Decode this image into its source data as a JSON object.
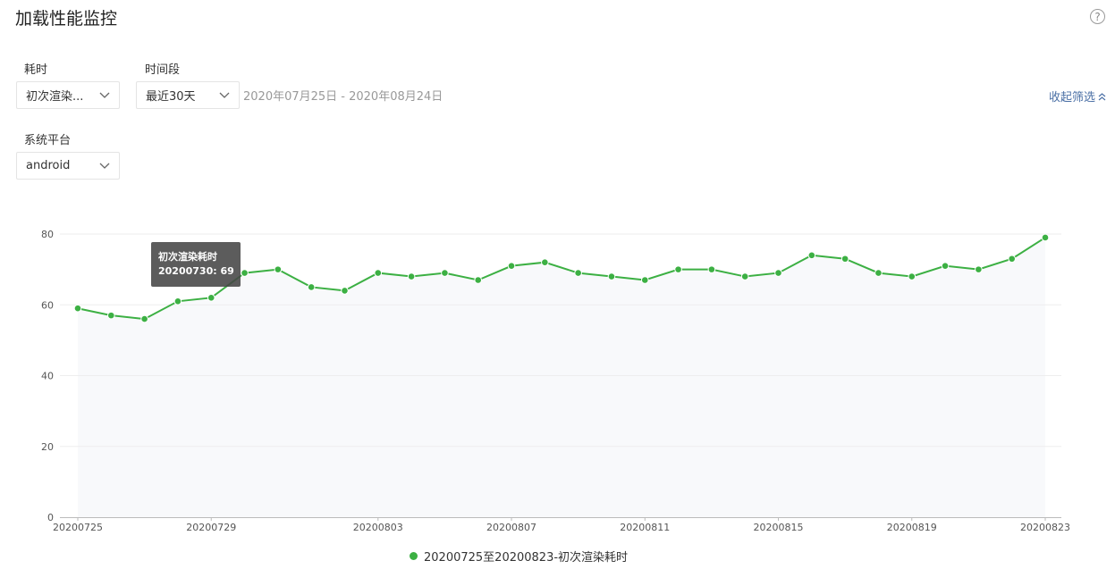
{
  "header": {
    "title": "加载性能监控",
    "help_icon": "question-circle-icon",
    "help_glyph": "?"
  },
  "filters": {
    "metric": {
      "label": "耗时",
      "value": "初次渲染..."
    },
    "period": {
      "label": "时间段",
      "value": "最近30天",
      "range_text": "2020年07月25日 - 2020年08月24日"
    },
    "platform": {
      "label": "系统平台",
      "value": "android"
    },
    "collapse_label": "收起筛选"
  },
  "colors": {
    "line": "#3cb043",
    "area": "#f8f9fb",
    "grid": "#eeeeee",
    "axis": "#bbbbbb",
    "accent_link": "#4a6fa5"
  },
  "tooltip": {
    "title": "初次渲染耗时",
    "value_text": "20200730: 69"
  },
  "chart_data": {
    "type": "line",
    "x": [
      "20200725",
      "20200726",
      "20200727",
      "20200728",
      "20200729",
      "20200730",
      "20200731",
      "20200801",
      "20200802",
      "20200803",
      "20200804",
      "20200805",
      "20200806",
      "20200807",
      "20200808",
      "20200809",
      "20200810",
      "20200811",
      "20200812",
      "20200813",
      "20200814",
      "20200815",
      "20200816",
      "20200817",
      "20200818",
      "20200819",
      "20200820",
      "20200821",
      "20200822",
      "20200823"
    ],
    "x_tick_labels": [
      "20200725",
      "20200729",
      "20200803",
      "20200807",
      "20200811",
      "20200815",
      "20200819",
      "20200823"
    ],
    "y_tick_labels": [
      "0",
      "20",
      "40",
      "60",
      "80"
    ],
    "ylim": [
      0,
      80
    ],
    "grid": true,
    "series": [
      {
        "name": "20200725至20200823-初次渲染耗时",
        "values": [
          59,
          57,
          56,
          61,
          62,
          69,
          70,
          65,
          64,
          69,
          68,
          69,
          67,
          71,
          72,
          69,
          68,
          67,
          70,
          70,
          68,
          69,
          74,
          73,
          69,
          68,
          71,
          70,
          73,
          79
        ]
      }
    ],
    "legend_position": "bottom-center"
  }
}
